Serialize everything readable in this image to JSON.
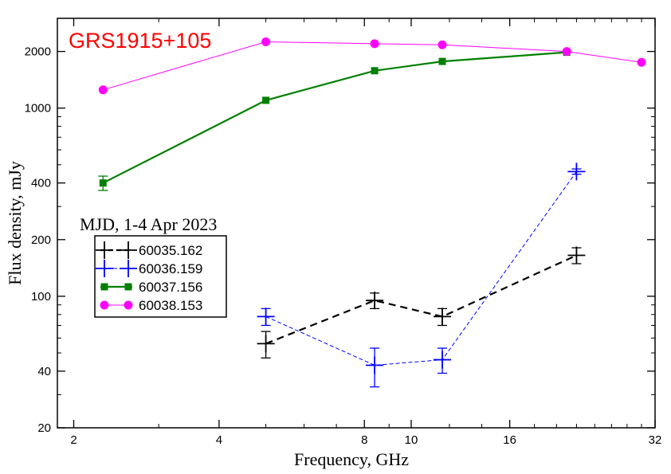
{
  "chart_data": {
    "type": "line",
    "title": "",
    "annotation": "GRS1915+105",
    "xlabel": "Frequency, GHz",
    "ylabel": "Flux density, mJy",
    "xscale": "log",
    "yscale": "log",
    "xlim": [
      1.85,
      32
    ],
    "ylim": [
      20,
      3000
    ],
    "xticks": [
      2,
      4,
      8,
      10,
      16,
      32
    ],
    "yticks": [
      20,
      40,
      100,
      200,
      400,
      1000,
      2000
    ],
    "grid": false,
    "legend_title": "MJD, 1-4 Apr 2023",
    "legend_position": "left-middle",
    "series": [
      {
        "name": "60035.162",
        "color": "#000000",
        "marker": "plus",
        "line": "dashed",
        "points": [
          {
            "x": 5.0,
            "y": 56,
            "err": 9
          },
          {
            "x": 8.4,
            "y": 95,
            "err": 9
          },
          {
            "x": 11.6,
            "y": 78,
            "err": 8
          },
          {
            "x": 22.0,
            "y": 165,
            "err": 16
          }
        ]
      },
      {
        "name": "60036.159",
        "color": "#0000ff",
        "marker": "plus",
        "line": "dashed-thin",
        "points": [
          {
            "x": 5.0,
            "y": 78,
            "err": 8
          },
          {
            "x": 8.4,
            "y": 43,
            "err": 10
          },
          {
            "x": 11.6,
            "y": 46,
            "err": 7
          },
          {
            "x": 22.0,
            "y": 460,
            "err": 15
          }
        ]
      },
      {
        "name": "60037.156",
        "color": "#008000",
        "marker": "square",
        "line": "solid",
        "points": [
          {
            "x": 2.3,
            "y": 400,
            "err": 35
          },
          {
            "x": 5.0,
            "y": 1100,
            "err": 0
          },
          {
            "x": 8.4,
            "y": 1580,
            "err": 0
          },
          {
            "x": 11.6,
            "y": 1770,
            "err": 0
          },
          {
            "x": 21.0,
            "y": 1980,
            "err": 0
          }
        ]
      },
      {
        "name": "60038.153",
        "color": "#ff00ff",
        "marker": "circle",
        "line": "solid-thin",
        "points": [
          {
            "x": 2.3,
            "y": 1250,
            "err": 0
          },
          {
            "x": 5.0,
            "y": 2250,
            "err": 0
          },
          {
            "x": 8.4,
            "y": 2200,
            "err": 0
          },
          {
            "x": 11.6,
            "y": 2170,
            "err": 0
          },
          {
            "x": 21.0,
            "y": 2000,
            "err": 0
          },
          {
            "x": 30.0,
            "y": 1750,
            "err": 0
          }
        ]
      }
    ]
  }
}
